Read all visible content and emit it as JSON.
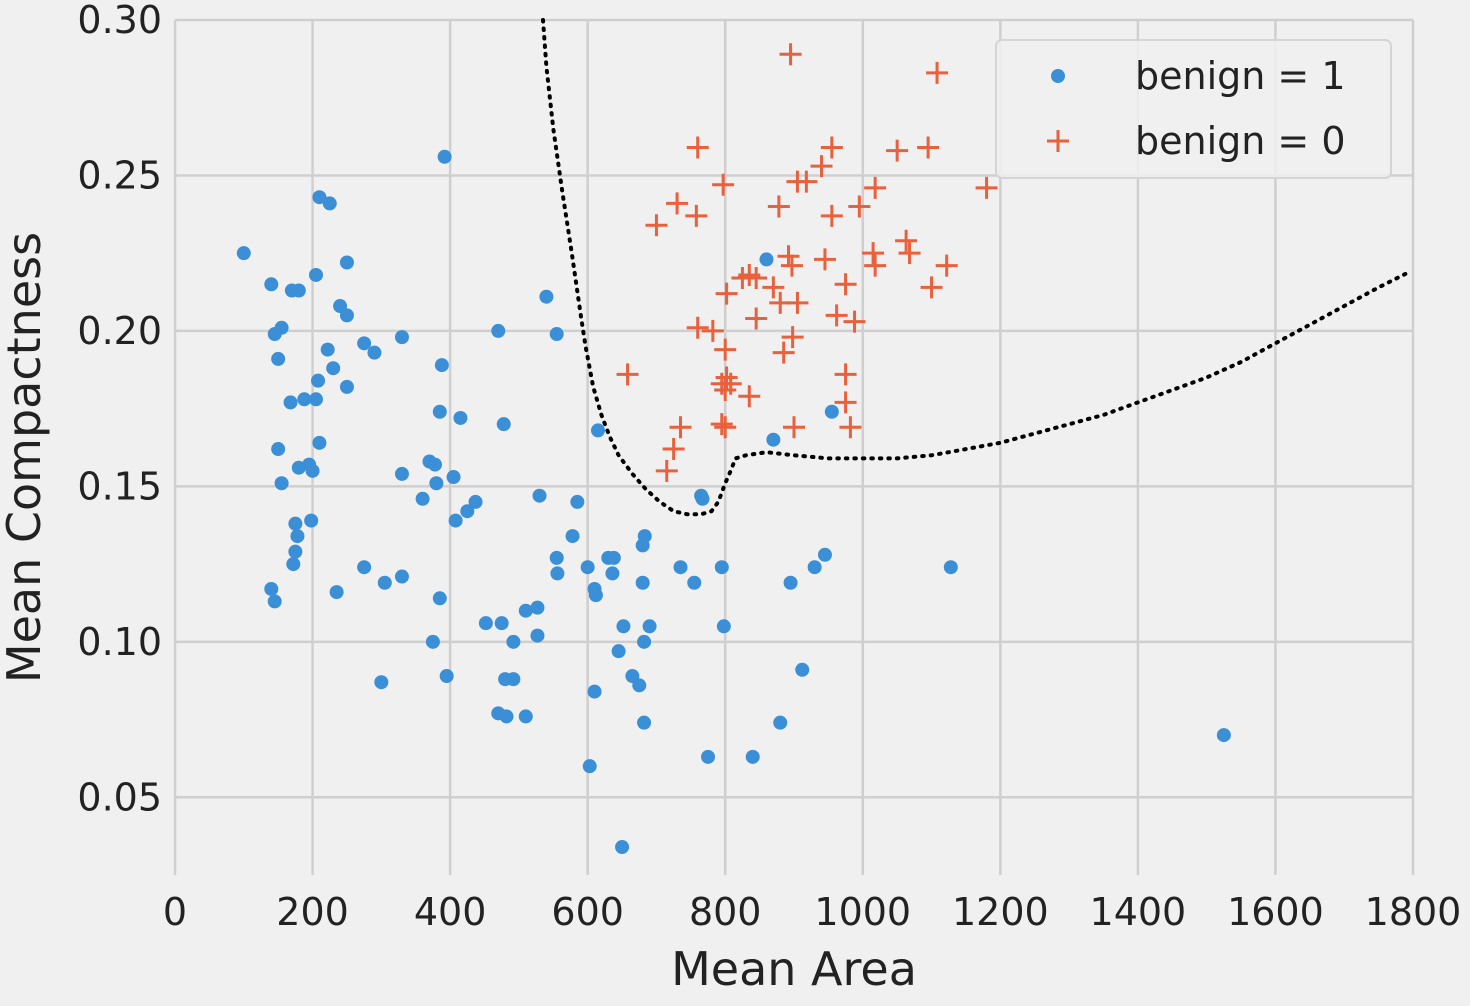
{
  "chart_data": {
    "type": "scatter",
    "title": "",
    "xlabel": "Mean Area",
    "ylabel": "Mean Compactness",
    "xlim": [
      0,
      1800
    ],
    "ylim": [
      0.025,
      0.3
    ],
    "xticks": [
      0,
      200,
      400,
      600,
      800,
      1000,
      1200,
      1400,
      1600,
      1800
    ],
    "xtick_labels": [
      "0",
      "200",
      "400",
      "600",
      "800",
      "1000",
      "1200",
      "1400",
      "1600",
      "1800"
    ],
    "yticks": [
      0.05,
      0.1,
      0.15,
      0.2,
      0.25,
      0.3
    ],
    "ytick_labels": [
      "0.05",
      "0.10",
      "0.15",
      "0.20",
      "0.25",
      "0.30"
    ],
    "grid": true,
    "legend_position": "top-right",
    "background_color": "#f0f0f0",
    "grid_color": "#cfcfcf",
    "series": [
      {
        "name": "benign = 1",
        "marker": "circle",
        "color": "#3a8fd6",
        "points": [
          [
            100,
            0.225
          ],
          [
            140,
            0.215
          ],
          [
            145,
            0.199
          ],
          [
            150,
            0.191
          ],
          [
            155,
            0.201
          ],
          [
            170,
            0.213
          ],
          [
            180,
            0.213
          ],
          [
            168,
            0.177
          ],
          [
            188,
            0.178
          ],
          [
            205,
            0.178
          ],
          [
            150,
            0.162
          ],
          [
            155,
            0.151
          ],
          [
            180,
            0.156
          ],
          [
            195,
            0.157
          ],
          [
            200,
            0.155
          ],
          [
            210,
            0.164
          ],
          [
            175,
            0.138
          ],
          [
            178,
            0.134
          ],
          [
            175,
            0.129
          ],
          [
            172,
            0.125
          ],
          [
            198,
            0.139
          ],
          [
            140,
            0.117
          ],
          [
            145,
            0.113
          ],
          [
            210,
            0.243
          ],
          [
            225,
            0.241
          ],
          [
            205,
            0.218
          ],
          [
            250,
            0.222
          ],
          [
            240,
            0.208
          ],
          [
            250,
            0.205
          ],
          [
            208,
            0.184
          ],
          [
            222,
            0.194
          ],
          [
            230,
            0.188
          ],
          [
            250,
            0.182
          ],
          [
            275,
            0.196
          ],
          [
            290,
            0.193
          ],
          [
            330,
            0.198
          ],
          [
            235,
            0.116
          ],
          [
            275,
            0.124
          ],
          [
            305,
            0.119
          ],
          [
            330,
            0.121
          ],
          [
            300,
            0.087
          ],
          [
            330,
            0.154
          ],
          [
            360,
            0.146
          ],
          [
            370,
            0.158
          ],
          [
            378,
            0.157
          ],
          [
            380,
            0.151
          ],
          [
            385,
            0.174
          ],
          [
            388,
            0.189
          ],
          [
            392,
            0.256
          ],
          [
            385,
            0.114
          ],
          [
            375,
            0.1
          ],
          [
            395,
            0.089
          ],
          [
            405,
            0.153
          ],
          [
            408,
            0.139
          ],
          [
            415,
            0.172
          ],
          [
            425,
            0.142
          ],
          [
            437,
            0.145
          ],
          [
            470,
            0.2
          ],
          [
            478,
            0.17
          ],
          [
            452,
            0.106
          ],
          [
            475,
            0.106
          ],
          [
            480,
            0.088
          ],
          [
            492,
            0.088
          ],
          [
            470,
            0.077
          ],
          [
            482,
            0.076
          ],
          [
            492,
            0.1
          ],
          [
            510,
            0.11
          ],
          [
            510,
            0.076
          ],
          [
            527,
            0.111
          ],
          [
            527,
            0.102
          ],
          [
            530,
            0.147
          ],
          [
            540,
            0.211
          ],
          [
            555,
            0.199
          ],
          [
            555,
            0.127
          ],
          [
            556,
            0.122
          ],
          [
            578,
            0.134
          ],
          [
            585,
            0.145
          ],
          [
            600,
            0.124
          ],
          [
            610,
            0.117
          ],
          [
            612,
            0.115
          ],
          [
            615,
            0.168
          ],
          [
            630,
            0.127
          ],
          [
            638,
            0.127
          ],
          [
            636,
            0.122
          ],
          [
            645,
            0.097
          ],
          [
            652,
            0.105
          ],
          [
            665,
            0.089
          ],
          [
            675,
            0.086
          ],
          [
            680,
            0.131
          ],
          [
            683,
            0.134
          ],
          [
            680,
            0.119
          ],
          [
            682,
            0.1
          ],
          [
            690,
            0.105
          ],
          [
            682,
            0.074
          ],
          [
            610,
            0.084
          ],
          [
            603,
            0.06
          ],
          [
            650,
            0.034
          ],
          [
            735,
            0.124
          ],
          [
            755,
            0.119
          ],
          [
            765,
            0.147
          ],
          [
            767,
            0.146
          ],
          [
            795,
            0.124
          ],
          [
            798,
            0.105
          ],
          [
            775,
            0.063
          ],
          [
            840,
            0.063
          ],
          [
            880,
            0.074
          ],
          [
            860,
            0.223
          ],
          [
            870,
            0.165
          ],
          [
            895,
            0.119
          ],
          [
            912,
            0.091
          ],
          [
            930,
            0.124
          ],
          [
            945,
            0.128
          ],
          [
            955,
            0.174
          ],
          [
            1128,
            0.124
          ],
          [
            1525,
            0.07
          ]
        ]
      },
      {
        "name": "benign = 0",
        "marker": "plus",
        "color": "#e8603c",
        "points": [
          [
            895,
            0.289
          ],
          [
            1108,
            0.283
          ],
          [
            760,
            0.259
          ],
          [
            955,
            0.259
          ],
          [
            1050,
            0.258
          ],
          [
            1095,
            0.259
          ],
          [
            700,
            0.234
          ],
          [
            730,
            0.241
          ],
          [
            758,
            0.237
          ],
          [
            797,
            0.247
          ],
          [
            878,
            0.24
          ],
          [
            905,
            0.248
          ],
          [
            918,
            0.248
          ],
          [
            940,
            0.253
          ],
          [
            955,
            0.237
          ],
          [
            995,
            0.24
          ],
          [
            1018,
            0.246
          ],
          [
            1180,
            0.246
          ],
          [
            802,
            0.212
          ],
          [
            825,
            0.217
          ],
          [
            835,
            0.218
          ],
          [
            845,
            0.217
          ],
          [
            870,
            0.214
          ],
          [
            880,
            0.209
          ],
          [
            897,
            0.221
          ],
          [
            892,
            0.224
          ],
          [
            905,
            0.209
          ],
          [
            945,
            0.223
          ],
          [
            975,
            0.215
          ],
          [
            1015,
            0.225
          ],
          [
            1018,
            0.221
          ],
          [
            1063,
            0.229
          ],
          [
            1068,
            0.225
          ],
          [
            1100,
            0.214
          ],
          [
            1122,
            0.221
          ],
          [
            658,
            0.186
          ],
          [
            760,
            0.201
          ],
          [
            782,
            0.2
          ],
          [
            800,
            0.194
          ],
          [
            802,
            0.185
          ],
          [
            800,
            0.181
          ],
          [
            795,
            0.183
          ],
          [
            808,
            0.183
          ],
          [
            835,
            0.179
          ],
          [
            845,
            0.204
          ],
          [
            885,
            0.193
          ],
          [
            898,
            0.198
          ],
          [
            962,
            0.205
          ],
          [
            975,
            0.186
          ],
          [
            975,
            0.177
          ],
          [
            988,
            0.203
          ],
          [
            900,
            0.169
          ],
          [
            982,
            0.169
          ],
          [
            735,
            0.169
          ],
          [
            725,
            0.162
          ],
          [
            715,
            0.155
          ],
          [
            795,
            0.17
          ],
          [
            800,
            0.169
          ]
        ]
      }
    ],
    "decision_boundary": {
      "style": "dotted",
      "color": "#000000",
      "points": [
        [
          535,
          0.3
        ],
        [
          540,
          0.285
        ],
        [
          550,
          0.265
        ],
        [
          563,
          0.245
        ],
        [
          577,
          0.225
        ],
        [
          590,
          0.205
        ],
        [
          597,
          0.195
        ],
        [
          608,
          0.182
        ],
        [
          620,
          0.173
        ],
        [
          632,
          0.166
        ],
        [
          645,
          0.16
        ],
        [
          665,
          0.154
        ],
        [
          685,
          0.149
        ],
        [
          705,
          0.145
        ],
        [
          725,
          0.142
        ],
        [
          745,
          0.141
        ],
        [
          765,
          0.141
        ],
        [
          780,
          0.142
        ],
        [
          790,
          0.145
        ],
        [
          800,
          0.151
        ],
        [
          808,
          0.155
        ],
        [
          815,
          0.159
        ],
        [
          830,
          0.16
        ],
        [
          860,
          0.161
        ],
        [
          900,
          0.16
        ],
        [
          950,
          0.159
        ],
        [
          1000,
          0.159
        ],
        [
          1050,
          0.159
        ],
        [
          1100,
          0.16
        ],
        [
          1150,
          0.162
        ],
        [
          1200,
          0.164
        ],
        [
          1250,
          0.167
        ],
        [
          1300,
          0.17
        ],
        [
          1350,
          0.173
        ],
        [
          1400,
          0.177
        ],
        [
          1450,
          0.181
        ],
        [
          1500,
          0.185
        ],
        [
          1550,
          0.19
        ],
        [
          1600,
          0.196
        ],
        [
          1650,
          0.202
        ],
        [
          1700,
          0.208
        ],
        [
          1750,
          0.214
        ],
        [
          1795,
          0.219
        ]
      ]
    }
  }
}
